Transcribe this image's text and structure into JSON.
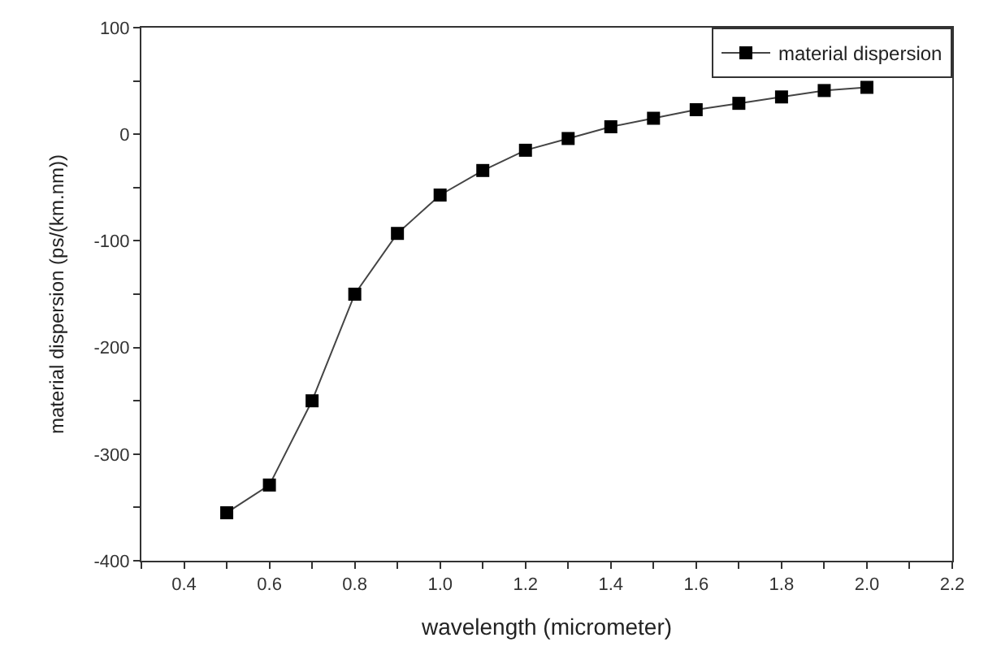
{
  "chart_data": {
    "type": "line",
    "xlabel": "wavelength (micrometer)",
    "ylabel": "material dispersion (ps/(km.nm))",
    "x": [
      0.5,
      0.6,
      0.7,
      0.8,
      0.9,
      1.0,
      1.1,
      1.2,
      1.3,
      1.4,
      1.5,
      1.6,
      1.7,
      1.8,
      1.9,
      2.0
    ],
    "series": [
      {
        "name": "material dispersion",
        "color": "#000000",
        "values": [
          -355,
          -329,
          -250,
          -150,
          -93,
          -57,
          -34,
          -15,
          -4,
          7,
          15,
          23,
          29,
          35,
          41,
          44
        ]
      }
    ],
    "xlim": [
      0.3,
      2.2
    ],
    "xticks": [
      {
        "value": 0.3,
        "label": null
      },
      {
        "value": 0.4,
        "label": "0.4"
      },
      {
        "value": 0.5,
        "label": null
      },
      {
        "value": 0.6,
        "label": "0.6"
      },
      {
        "value": 0.7,
        "label": null
      },
      {
        "value": 0.8,
        "label": "0.8"
      },
      {
        "value": 0.9,
        "label": null
      },
      {
        "value": 1.0,
        "label": "1.0"
      },
      {
        "value": 1.1,
        "label": null
      },
      {
        "value": 1.2,
        "label": "1.2"
      },
      {
        "value": 1.3,
        "label": null
      },
      {
        "value": 1.4,
        "label": "1.4"
      },
      {
        "value": 1.5,
        "label": null
      },
      {
        "value": 1.6,
        "label": "1.6"
      },
      {
        "value": 1.7,
        "label": null
      },
      {
        "value": 1.8,
        "label": "1.8"
      },
      {
        "value": 1.9,
        "label": null
      },
      {
        "value": 2.0,
        "label": "2.0"
      },
      {
        "value": 2.1,
        "label": null
      },
      {
        "value": 2.2,
        "label": "2.2"
      }
    ],
    "ylim": [
      -400,
      100
    ],
    "yticks": [
      -400,
      {
        "value": -350,
        "label": null
      },
      -300,
      {
        "value": -250,
        "label": null
      },
      -200,
      {
        "value": -150,
        "label": null
      },
      -100,
      {
        "value": -50,
        "label": null
      },
      0,
      {
        "value": 50,
        "label": null
      },
      100
    ],
    "legend": "top right",
    "marker": "square",
    "line_style": "solid"
  }
}
